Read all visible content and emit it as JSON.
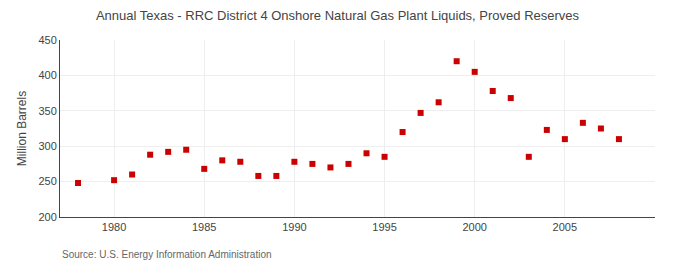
{
  "chart_data": {
    "type": "scatter",
    "title": "Annual Texas - RRC District 4 Onshore Natural Gas Plant Liquids, Proved Reserves",
    "ylabel": "Million Barrels",
    "source": "Source: U.S. Energy Information Administration",
    "x": [
      1978,
      1980,
      1981,
      1982,
      1983,
      1984,
      1985,
      1986,
      1987,
      1988,
      1989,
      1990,
      1991,
      1992,
      1993,
      1994,
      1995,
      1996,
      1997,
      1998,
      1999,
      2000,
      2001,
      2002,
      2003,
      2004,
      2005,
      2006,
      2007,
      2008
    ],
    "values": [
      248,
      252,
      260,
      288,
      292,
      295,
      268,
      280,
      278,
      258,
      258,
      278,
      275,
      270,
      275,
      290,
      285,
      320,
      347,
      362,
      420,
      405,
      378,
      368,
      285,
      323,
      310,
      333,
      325,
      310
    ],
    "color": "#cc0000",
    "marker": "square",
    "xlim": [
      1977,
      2010
    ],
    "ylim": [
      200,
      450
    ],
    "xticks": [
      1980,
      1985,
      1990,
      1995,
      2000,
      2005
    ],
    "yticks": [
      200,
      250,
      300,
      350,
      400,
      450
    ],
    "grid": true
  }
}
